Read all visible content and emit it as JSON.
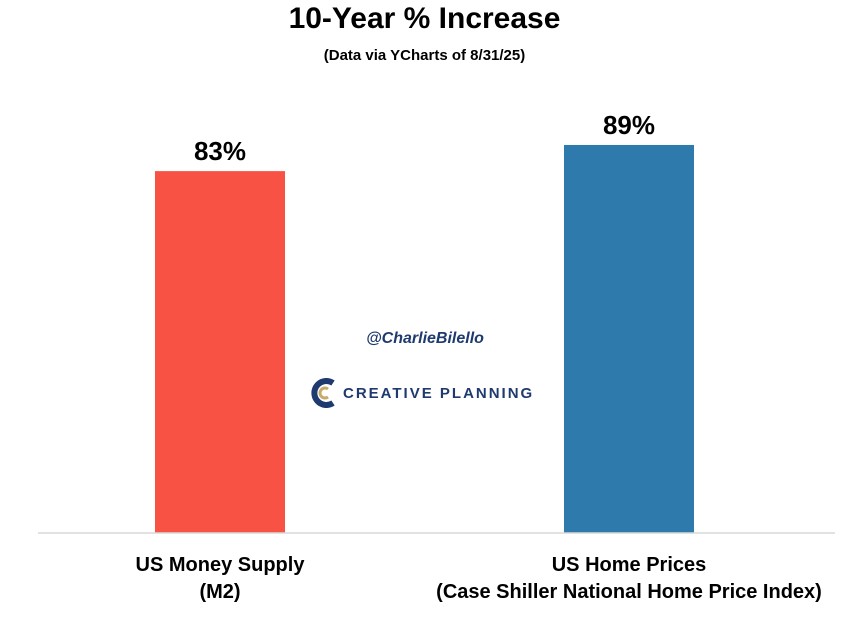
{
  "chart_data": {
    "type": "bar",
    "title": "10-Year % Increase",
    "subtitle": "(Data via YCharts of 8/31/25)",
    "categories": [
      {
        "line1": "US Money Supply",
        "line2": "(M2)"
      },
      {
        "line1": "US Home Prices",
        "line2": "(Case Shiller National Home Price Index)"
      }
    ],
    "values": [
      83,
      89
    ],
    "data_labels": [
      "83%",
      "89%"
    ],
    "colors": [
      "#f75244",
      "#2e7aac"
    ],
    "ylim": [
      0,
      100
    ],
    "grid": false,
    "legend": "none"
  },
  "watermark": {
    "handle": "@CharlieBilello",
    "logo_text": "CREATIVE PLANNING",
    "logo_color": "#1f3a6e",
    "logo_accent": "#c8a96a"
  }
}
